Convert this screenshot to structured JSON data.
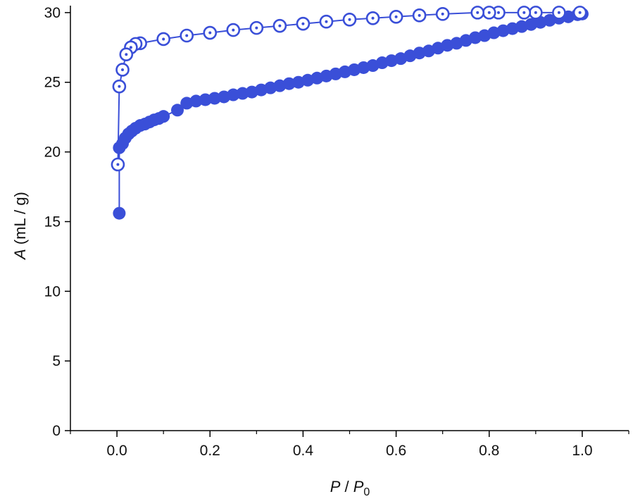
{
  "chart_data": {
    "type": "scatter",
    "xlabel": {
      "italic_1": "P",
      "sep": " / ",
      "italic_2": "P",
      "sub": "0"
    },
    "ylabel": {
      "italic": "A",
      "rest": " (mL / g)"
    },
    "xlim": [
      -0.1,
      1.1
    ],
    "ylim": [
      0,
      30.5
    ],
    "x_ticks": [
      0.0,
      0.2,
      0.4,
      0.6,
      0.8,
      1.0
    ],
    "x_tick_labels": [
      "0.0",
      "0.2",
      "0.4",
      "0.6",
      "0.8",
      "1.0"
    ],
    "y_ticks": [
      0,
      5,
      10,
      15,
      20,
      25,
      30
    ],
    "y_tick_labels": [
      "0",
      "5",
      "10",
      "15",
      "20",
      "25",
      "30"
    ],
    "grid": false,
    "series": [
      {
        "marker": "filled-circle",
        "color": "#3a4fd8",
        "points": [
          [
            0.005,
            15.6
          ],
          [
            0.005,
            20.3
          ],
          [
            0.012,
            20.6
          ],
          [
            0.018,
            21.0
          ],
          [
            0.025,
            21.3
          ],
          [
            0.032,
            21.5
          ],
          [
            0.04,
            21.7
          ],
          [
            0.05,
            21.9
          ],
          [
            0.06,
            22.0
          ],
          [
            0.07,
            22.15
          ],
          [
            0.08,
            22.3
          ],
          [
            0.09,
            22.4
          ],
          [
            0.1,
            22.55
          ],
          [
            0.13,
            23.0
          ],
          [
            0.15,
            23.5
          ],
          [
            0.17,
            23.65
          ],
          [
            0.19,
            23.75
          ],
          [
            0.21,
            23.85
          ],
          [
            0.23,
            23.95
          ],
          [
            0.25,
            24.1
          ],
          [
            0.27,
            24.2
          ],
          [
            0.29,
            24.3
          ],
          [
            0.31,
            24.45
          ],
          [
            0.33,
            24.6
          ],
          [
            0.35,
            24.75
          ],
          [
            0.37,
            24.9
          ],
          [
            0.39,
            25.0
          ],
          [
            0.41,
            25.15
          ],
          [
            0.43,
            25.3
          ],
          [
            0.45,
            25.45
          ],
          [
            0.47,
            25.6
          ],
          [
            0.49,
            25.75
          ],
          [
            0.51,
            25.9
          ],
          [
            0.53,
            26.05
          ],
          [
            0.55,
            26.2
          ],
          [
            0.57,
            26.4
          ],
          [
            0.59,
            26.55
          ],
          [
            0.61,
            26.7
          ],
          [
            0.63,
            26.9
          ],
          [
            0.65,
            27.1
          ],
          [
            0.67,
            27.25
          ],
          [
            0.69,
            27.45
          ],
          [
            0.71,
            27.65
          ],
          [
            0.73,
            27.8
          ],
          [
            0.75,
            28.0
          ],
          [
            0.77,
            28.2
          ],
          [
            0.79,
            28.35
          ],
          [
            0.81,
            28.55
          ],
          [
            0.83,
            28.7
          ],
          [
            0.85,
            28.85
          ],
          [
            0.87,
            29.0
          ],
          [
            0.89,
            29.15
          ],
          [
            0.91,
            29.3
          ],
          [
            0.93,
            29.45
          ],
          [
            0.95,
            29.6
          ],
          [
            0.97,
            29.7
          ],
          [
            0.99,
            29.85
          ],
          [
            1.0,
            29.9
          ]
        ]
      },
      {
        "marker": "open-circle-dot",
        "color": "#3a4fd8",
        "points": [
          [
            0.995,
            30.0
          ],
          [
            0.95,
            30.0
          ],
          [
            0.9,
            30.0
          ],
          [
            0.875,
            30.0
          ],
          [
            0.82,
            30.0
          ],
          [
            0.8,
            30.0
          ],
          [
            0.775,
            30.0
          ],
          [
            0.7,
            29.9
          ],
          [
            0.65,
            29.8
          ],
          [
            0.6,
            29.7
          ],
          [
            0.55,
            29.6
          ],
          [
            0.5,
            29.5
          ],
          [
            0.45,
            29.35
          ],
          [
            0.4,
            29.2
          ],
          [
            0.35,
            29.05
          ],
          [
            0.3,
            28.9
          ],
          [
            0.25,
            28.75
          ],
          [
            0.2,
            28.55
          ],
          [
            0.15,
            28.35
          ],
          [
            0.1,
            28.1
          ],
          [
            0.05,
            27.8
          ],
          [
            0.04,
            27.75
          ],
          [
            0.03,
            27.5
          ],
          [
            0.02,
            27.0
          ],
          [
            0.012,
            25.9
          ],
          [
            0.005,
            24.7
          ],
          [
            0.002,
            19.1
          ]
        ]
      }
    ]
  }
}
